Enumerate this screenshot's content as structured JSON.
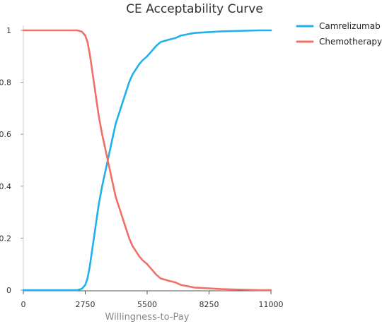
{
  "chart_data": {
    "type": "line",
    "title": "CE Acceptability Curve",
    "xlabel": "Willingness-to-Pay",
    "ylabel": "",
    "xlim": [
      0,
      11000
    ],
    "ylim": [
      0,
      1
    ],
    "x_ticks": [
      "0",
      "2750",
      "5500",
      "8250",
      "11000"
    ],
    "y_ticks": [
      "0",
      "0.2",
      "0.4",
      "0.6",
      "0.8",
      "1"
    ],
    "grid": false,
    "legend_position": "top-right",
    "series": [
      {
        "name": "Camrelizumab",
        "color": "#1EB1EB",
        "x": [
          0,
          2400,
          2600,
          2750,
          2850,
          2950,
          3050,
          3200,
          3350,
          3500,
          3650,
          3800,
          3950,
          4100,
          4250,
          4400,
          4550,
          4700,
          4850,
          5000,
          5150,
          5300,
          5500,
          5700,
          5900,
          6100,
          6300,
          6500,
          6750,
          7000,
          7300,
          7600,
          8000,
          8400,
          8800,
          9200,
          9600,
          10000,
          10500,
          11000
        ],
        "y": [
          0,
          0,
          0.005,
          0.02,
          0.045,
          0.09,
          0.15,
          0.24,
          0.33,
          0.4,
          0.46,
          0.52,
          0.58,
          0.64,
          0.68,
          0.72,
          0.76,
          0.8,
          0.83,
          0.85,
          0.87,
          0.885,
          0.9,
          0.92,
          0.94,
          0.955,
          0.96,
          0.965,
          0.97,
          0.98,
          0.985,
          0.99,
          0.992,
          0.994,
          0.996,
          0.997,
          0.998,
          0.999,
          1.0,
          1.0
        ]
      },
      {
        "name": "Chemotherapy",
        "color": "#F07067",
        "x": [
          0,
          2400,
          2600,
          2750,
          2850,
          2950,
          3050,
          3200,
          3350,
          3500,
          3650,
          3800,
          3950,
          4100,
          4250,
          4400,
          4550,
          4700,
          4850,
          5000,
          5150,
          5300,
          5500,
          5700,
          5900,
          6100,
          6300,
          6500,
          6750,
          7000,
          7300,
          7600,
          8000,
          8400,
          8800,
          9200,
          9600,
          10000,
          10500,
          11000
        ],
        "y": [
          1,
          1,
          0.995,
          0.98,
          0.955,
          0.91,
          0.85,
          0.76,
          0.67,
          0.6,
          0.54,
          0.48,
          0.42,
          0.36,
          0.32,
          0.28,
          0.24,
          0.2,
          0.17,
          0.15,
          0.13,
          0.115,
          0.1,
          0.08,
          0.06,
          0.045,
          0.04,
          0.035,
          0.03,
          0.02,
          0.015,
          0.01,
          0.008,
          0.006,
          0.004,
          0.003,
          0.002,
          0.001,
          0.0,
          0.0
        ]
      }
    ]
  }
}
